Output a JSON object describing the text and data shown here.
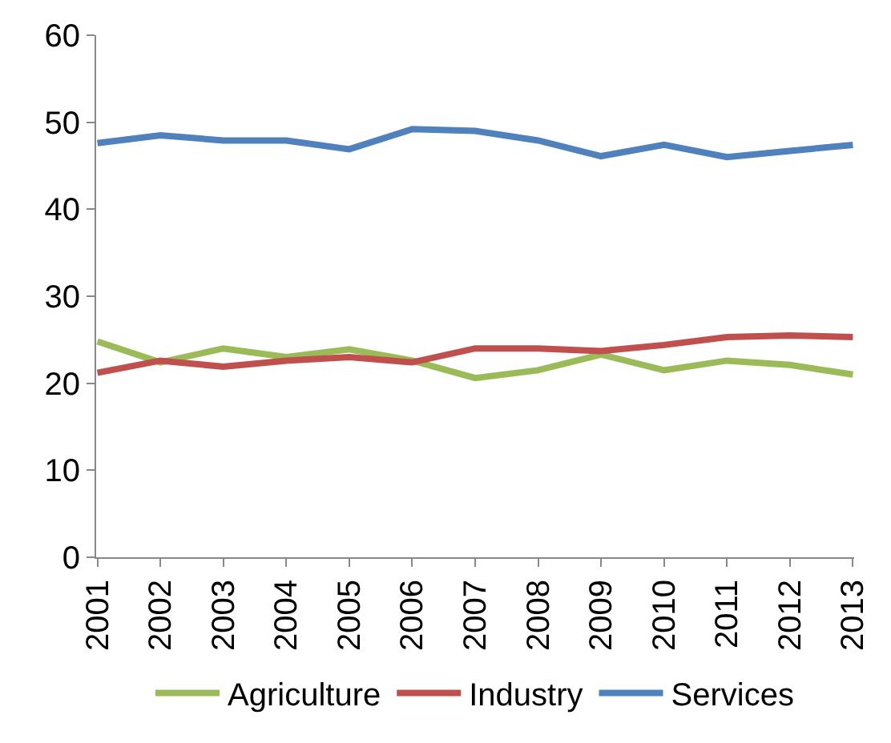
{
  "chart_data": {
    "type": "line",
    "categories": [
      "2001",
      "2002",
      "2003",
      "2004",
      "2005",
      "2006",
      "2007",
      "2008",
      "2009",
      "2010",
      "2011",
      "2012",
      "2013"
    ],
    "series": [
      {
        "name": "Agriculture",
        "color": "#9bbb59",
        "values": [
          24.8,
          22.4,
          24.0,
          23.0,
          23.9,
          22.6,
          20.6,
          21.5,
          23.3,
          21.5,
          22.6,
          22.1,
          21.0
        ]
      },
      {
        "name": "Industry",
        "color": "#c0504d",
        "values": [
          21.2,
          22.6,
          21.9,
          22.6,
          23.0,
          22.4,
          24.0,
          24.0,
          23.7,
          24.4,
          25.3,
          25.5,
          25.3
        ]
      },
      {
        "name": "Services",
        "color": "#4f81bd",
        "values": [
          47.6,
          48.5,
          47.9,
          47.9,
          46.9,
          49.2,
          49.0,
          47.9,
          46.1,
          47.4,
          46.0,
          46.7,
          47.4
        ]
      }
    ],
    "ylim": [
      0,
      60
    ],
    "yticks": [
      0,
      10,
      20,
      30,
      40,
      50,
      60
    ],
    "grid": false,
    "legend": "bottom",
    "marker": "none",
    "line_style": "solid"
  }
}
